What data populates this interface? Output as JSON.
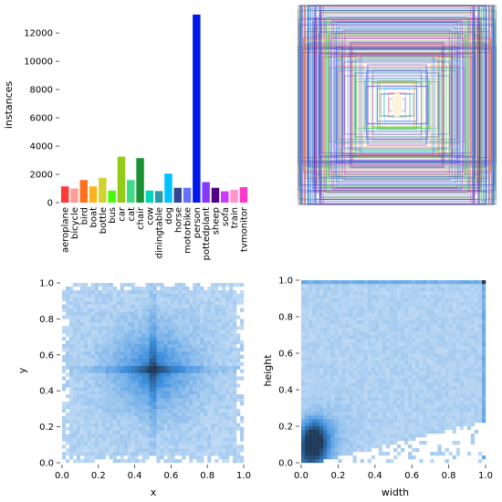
{
  "chart_data": [
    {
      "type": "bar",
      "categories": [
        "aeroplane",
        "bicycle",
        "bird",
        "boat",
        "bottle",
        "bus",
        "car",
        "cat",
        "chair",
        "cow",
        "diningtable",
        "dog",
        "horse",
        "motorbike",
        "person",
        "pottedplant",
        "sheep",
        "sofa",
        "train",
        "tvmonitor"
      ],
      "values": [
        1150,
        1000,
        1600,
        1150,
        1750,
        850,
        3250,
        1600,
        3150,
        850,
        820,
        2050,
        1050,
        1050,
        13300,
        1450,
        1050,
        800,
        900,
        1100
      ],
      "colors": [
        "#ff3838",
        "#ff9d97",
        "#ff701f",
        "#ffb21d",
        "#cfd231",
        "#48f90a",
        "#92cc17",
        "#3ddb86",
        "#1a9334",
        "#00d4bb",
        "#2c99a8",
        "#00c2ff",
        "#344593",
        "#6473ff",
        "#0018ec",
        "#8438ff",
        "#520085",
        "#cb38ff",
        "#ff95c8",
        "#ff37c7"
      ],
      "ylabel": "instances",
      "ylim": [
        0,
        13300
      ],
      "yticks": [
        "0",
        "2000",
        "4000",
        "6000",
        "8000",
        "10000",
        "12000"
      ]
    },
    {
      "type": "other",
      "description_free": true,
      "box_colors": [
        "#ff3838",
        "#ff9d97",
        "#ff701f",
        "#ffb21d",
        "#cfd231",
        "#48f90a",
        "#92cc17",
        "#3ddb86",
        "#1a9334",
        "#00d4bb",
        "#2c99a8",
        "#00c2ff",
        "#344593",
        "#6473ff",
        "#0018ec",
        "#8438ff",
        "#520085",
        "#cb38ff",
        "#ff95c8",
        "#ff37c7"
      ]
    },
    {
      "type": "heatmap",
      "xlabel": "x",
      "ylabel": "y",
      "xlim": [
        0,
        1
      ],
      "ylim": [
        0,
        1
      ],
      "xticks": [
        "0.0",
        "0.2",
        "0.4",
        "0.6",
        "0.8",
        "1.0"
      ],
      "yticks": [
        "0.0",
        "0.2",
        "0.4",
        "0.6",
        "0.8",
        "1.0"
      ],
      "peak": [
        0.5,
        0.52
      ],
      "cmap": [
        "#e8f1fb",
        "#1f3a5a"
      ]
    },
    {
      "type": "heatmap",
      "xlabel": "width",
      "ylabel": "height",
      "xlim": [
        0,
        1
      ],
      "ylim": [
        0,
        1
      ],
      "xticks": [
        "0.0",
        "0.2",
        "0.4",
        "0.6",
        "0.8",
        "1.0"
      ],
      "yticks": [
        "0.0",
        "0.2",
        "0.4",
        "0.6",
        "0.8",
        "1.0"
      ],
      "peak": [
        0.07,
        0.12
      ],
      "cmap": [
        "#e8f1fb",
        "#1f3a5a"
      ]
    }
  ]
}
